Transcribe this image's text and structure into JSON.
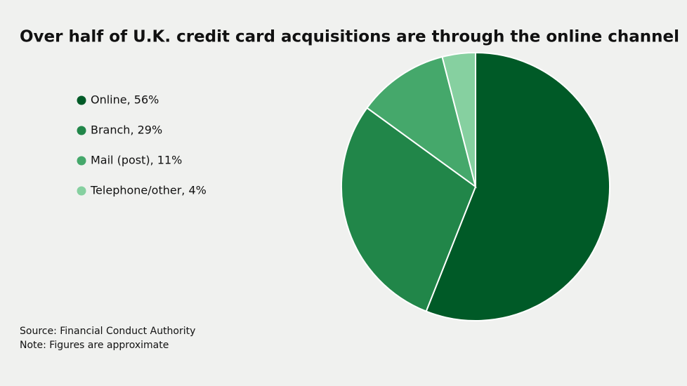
{
  "chart_data": {
    "type": "pie",
    "title": "Over half of U.K. credit card acquisitions are through the online channel",
    "categories": [
      "Online, 56%",
      "Branch, 29%",
      "Mail (post), 11%",
      "Telephone/other, 4%"
    ],
    "values": [
      56,
      29,
      11,
      4
    ],
    "colors": [
      "#005a27",
      "#218649",
      "#45a86b",
      "#86d0a0"
    ],
    "source": "Source: Financial Conduct Authority",
    "note": "Note: Figures are approximate"
  }
}
